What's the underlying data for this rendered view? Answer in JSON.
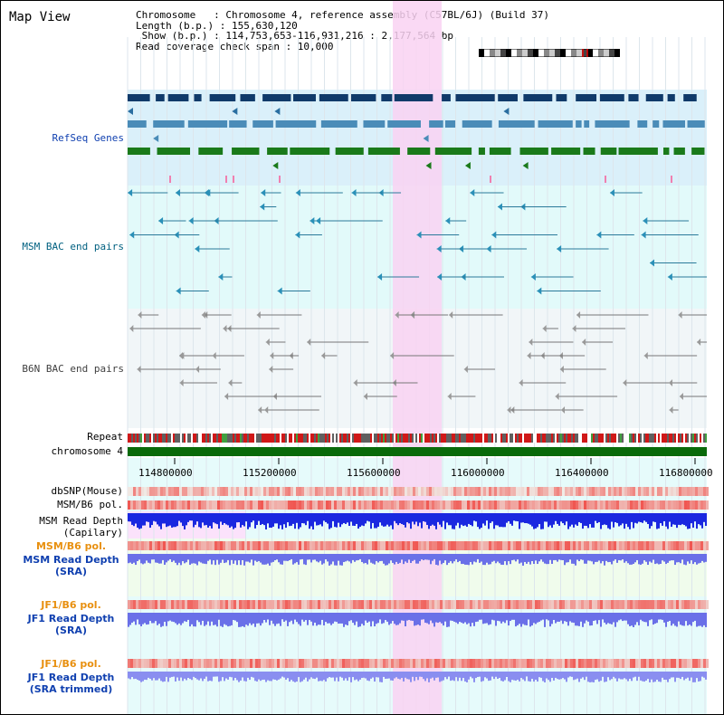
{
  "view_title": "Map View",
  "info": {
    "line1": "Chromosome   : Chromosome 4, reference assembly (C57BL/6J) (Build 37)",
    "line2": "Length (b.p.) : 155,630,120",
    "line3": " Show (b.p.) : 114,753,653-116,931,216 : 2,177,564 bp",
    "line4": "Read coverage check span : 10,000"
  },
  "tracks": {
    "refseq": "RefSeq Genes",
    "msm_bac": "MSM BAC end pairs",
    "b6n_bac": "B6N BAC end pairs",
    "repeat": "Repeat",
    "chromosome": "chromosome 4",
    "dbsnp": "dbSNP(Mouse)",
    "msm_pol": "MSM/B6 pol.",
    "msm_depth_cap1": "MSM Read Depth",
    "msm_depth_cap2": "(Capilary)",
    "msm_pol_sra": "MSM/B6 pol.",
    "msm_depth_sra1": "MSM Read Depth",
    "msm_depth_sra2": "(SRA)",
    "jf1_pol": "JF1/B6 pol.",
    "jf1_depth1": "JF1 Read Depth",
    "jf1_depth2": "(SRA)",
    "jf1_pol_trim": "JF1/B6 pol.",
    "jf1_trim1": "JF1 Read Depth",
    "jf1_trim2": "(SRA trimmed)"
  },
  "axis_labels": [
    "114800000",
    "115200000",
    "115600000",
    "116000000",
    "116400000",
    "116800000"
  ],
  "colors": {
    "refseq_bg": "#daf0fa",
    "msm_bg": "#e2fafa",
    "b6n_bg": "#f1f6f8",
    "highlight": "#f9d2f2",
    "label_blue": "#1040b0",
    "label_orange": "#e89010",
    "label_teal": "#006080",
    "label_gray": "#404040"
  }
}
